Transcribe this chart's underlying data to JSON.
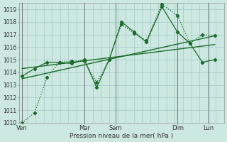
{
  "xlabel": "Pression niveau de la mer( hPa )",
  "ylim": [
    1010,
    1019.5
  ],
  "yticks": [
    1010,
    1011,
    1012,
    1013,
    1014,
    1015,
    1016,
    1017,
    1018,
    1019
  ],
  "xtick_labels": [
    "Ven",
    "Mar",
    "Sam",
    "Dim",
    "Lun"
  ],
  "xtick_positions": [
    0.0,
    2.0,
    3.0,
    5.0,
    6.0
  ],
  "xlim": [
    -0.1,
    6.5
  ],
  "bg_color": "#cce8e0",
  "grid_color": "#aacccc",
  "line_color": "#1a6b2a",
  "vlines": [
    0.0,
    2.0,
    3.0,
    5.0,
    6.0
  ],
  "vline_color": "#555555",
  "line_dotted": {
    "x": [
      0.0,
      0.4,
      0.8,
      1.2,
      1.6,
      2.0,
      2.4,
      2.8,
      3.2,
      3.6,
      4.0,
      4.5,
      5.0,
      5.4,
      5.8,
      6.2
    ],
    "y": [
      1010.0,
      1010.8,
      1013.6,
      1014.8,
      1014.9,
      1014.9,
      1013.2,
      1015.0,
      1017.8,
      1017.1,
      1016.5,
      1019.4,
      1018.5,
      1016.3,
      1017.0,
      1016.9
    ]
  },
  "line_solid": {
    "x": [
      0.0,
      0.4,
      0.8,
      1.2,
      1.6,
      2.0,
      2.4,
      2.8,
      3.2,
      3.6,
      4.0,
      4.5,
      5.0,
      5.4,
      5.8,
      6.2
    ],
    "y": [
      1013.7,
      1014.3,
      1014.8,
      1014.8,
      1014.7,
      1015.0,
      1012.8,
      1015.0,
      1018.0,
      1017.2,
      1016.4,
      1019.2,
      1017.2,
      1016.3,
      1014.8,
      1015.0
    ]
  },
  "trend1": {
    "x": [
      0.0,
      6.2
    ],
    "y": [
      1013.5,
      1016.9
    ]
  },
  "trend2": {
    "x": [
      0.0,
      6.2
    ],
    "y": [
      1014.3,
      1016.2
    ]
  }
}
